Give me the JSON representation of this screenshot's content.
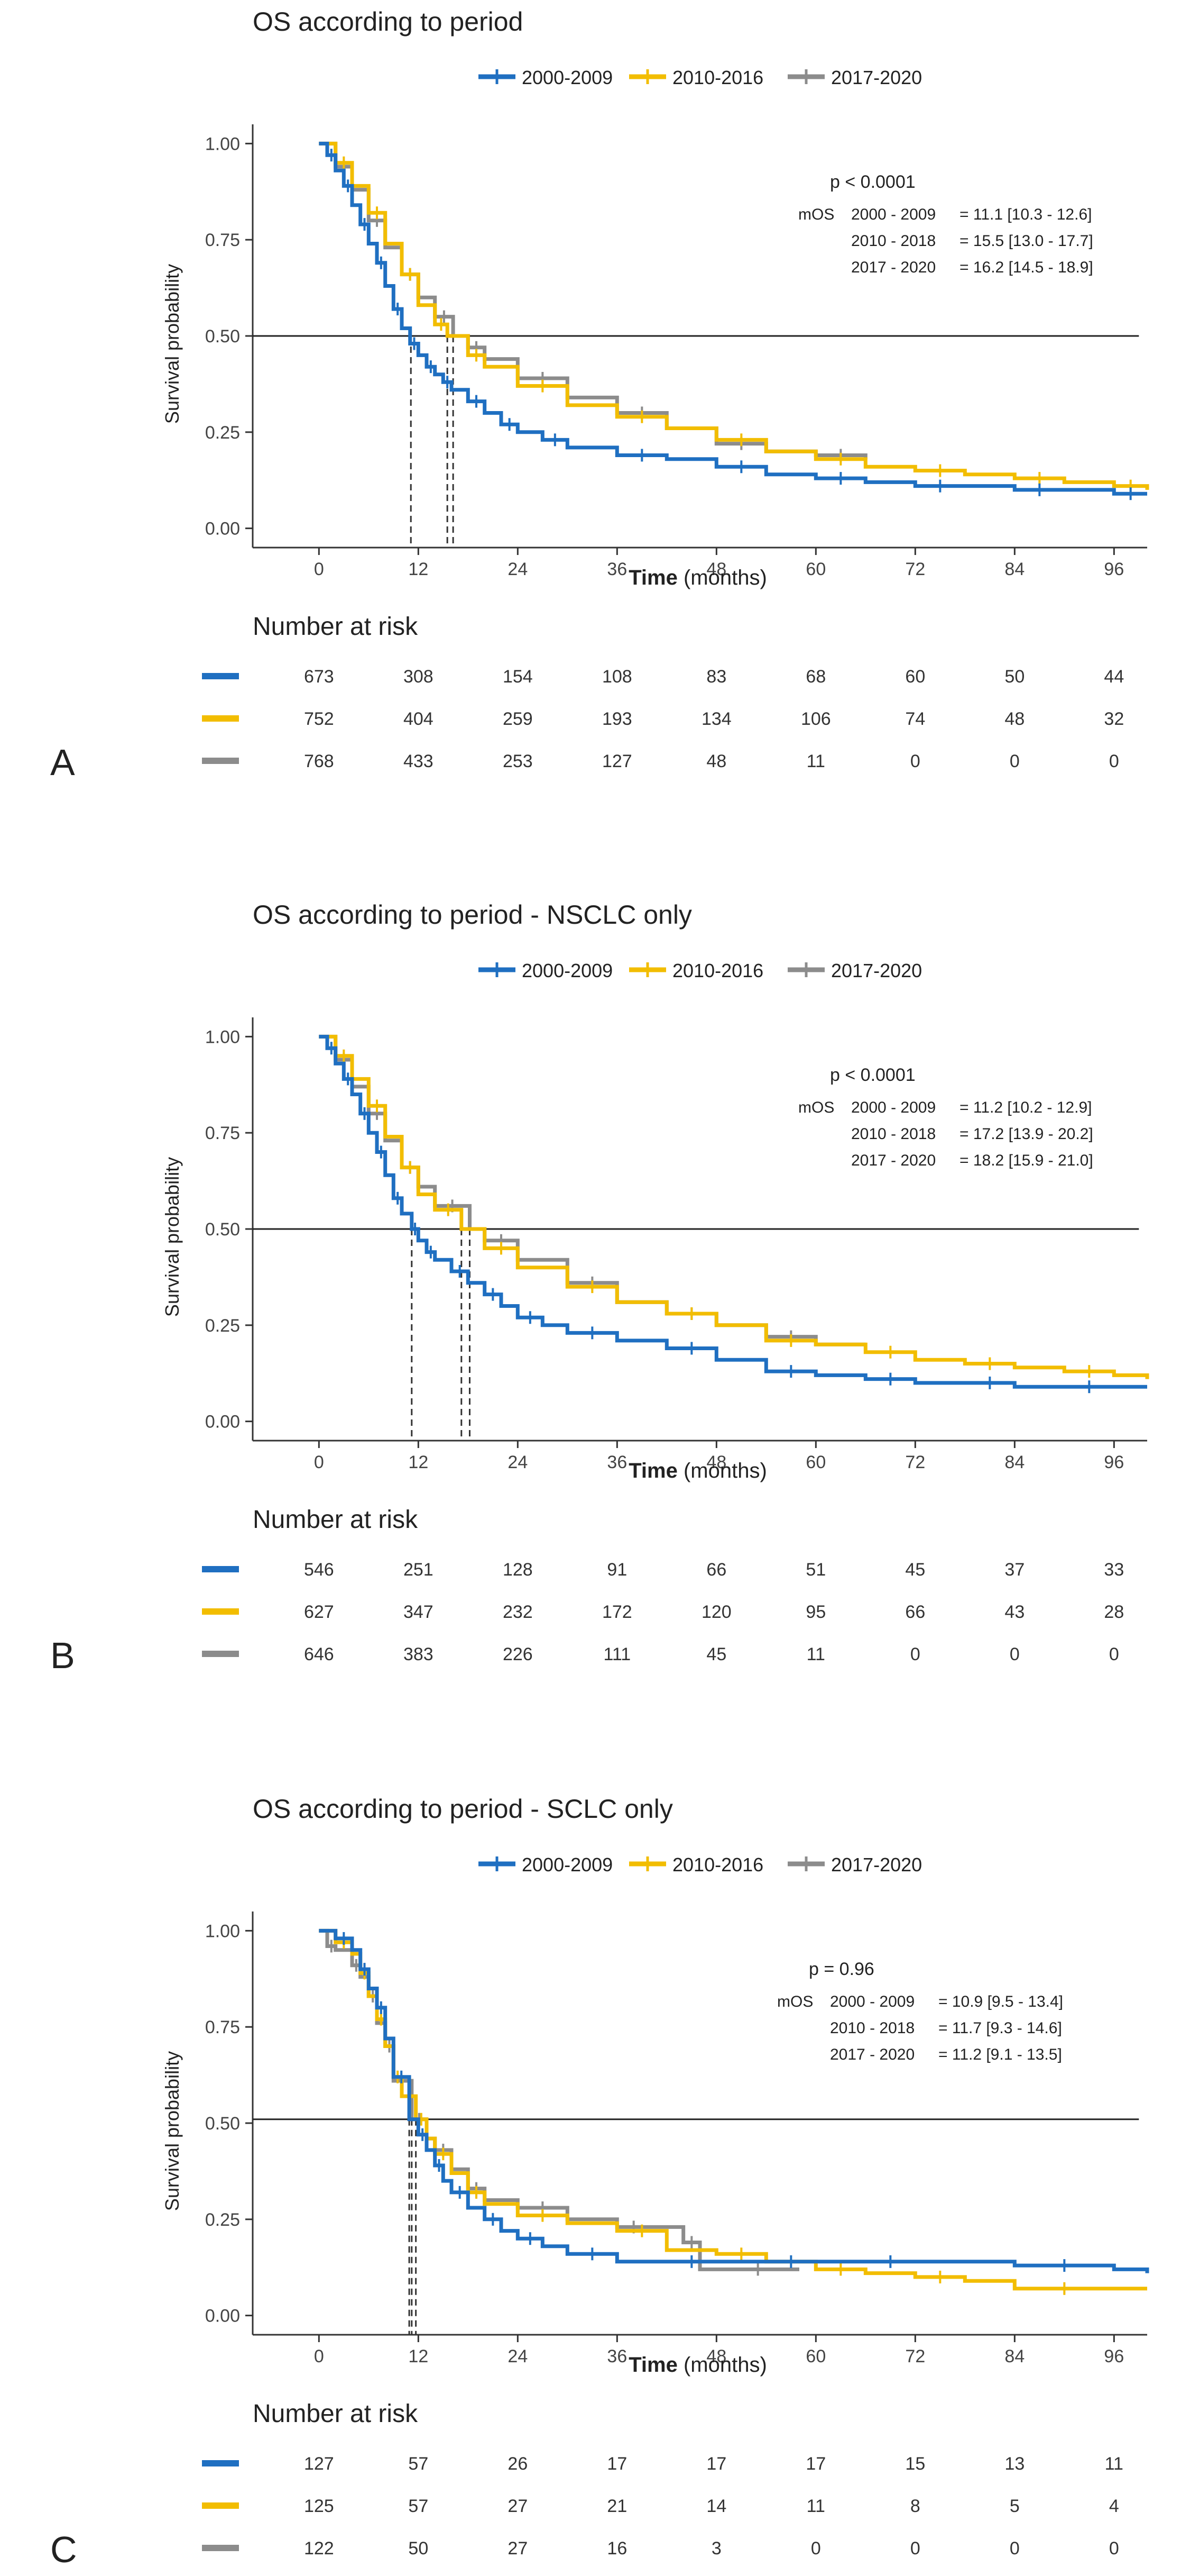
{
  "chart_data": [
    {
      "type": "line",
      "panel": "A",
      "title": "OS according to period",
      "xlabel": "Time",
      "xlabel_units": "(months)",
      "ylabel": "Survival probability",
      "xlim": [
        -8,
        100
      ],
      "ylim": [
        -0.05,
        1.05
      ],
      "x_ticks": [
        "0",
        "12",
        "24",
        "36",
        "48",
        "60",
        "72",
        "84",
        "96"
      ],
      "y_ticks": [
        "0.00",
        "0.25",
        "0.50",
        "0.75",
        "1.00"
      ],
      "legend": {
        "placement": "top"
      },
      "median_line": 0.5,
      "median_line_end": 99,
      "pvalue": "p < 0.0001",
      "mos_label": "mOS",
      "mos": [
        {
          "period": "2000 - 2009",
          "value": "= 11.1 [10.3 - 12.6]"
        },
        {
          "period": "2010 - 2018",
          "value": "= 15.5 [13.0 - 17.7]"
        },
        {
          "period": "2017 - 2020",
          "value": "= 16.2 [14.5 - 18.9]"
        }
      ],
      "risk_title": "Number at risk",
      "series": [
        {
          "name": "2000-2009",
          "color": "#1f6fc1",
          "median": 11.1,
          "x": [
            0,
            1,
            2,
            3,
            4,
            5,
            6,
            7,
            8,
            9,
            10,
            11,
            12,
            13,
            14,
            15,
            16,
            18,
            20,
            22,
            24,
            27,
            30,
            36,
            42,
            48,
            54,
            60,
            66,
            72,
            78,
            84,
            90,
            96,
            100
          ],
          "y": [
            1.0,
            0.97,
            0.93,
            0.89,
            0.84,
            0.79,
            0.74,
            0.69,
            0.63,
            0.57,
            0.52,
            0.48,
            0.45,
            0.42,
            0.4,
            0.38,
            0.36,
            0.33,
            0.3,
            0.27,
            0.25,
            0.23,
            0.21,
            0.19,
            0.18,
            0.16,
            0.14,
            0.13,
            0.12,
            0.11,
            0.11,
            0.1,
            0.1,
            0.09,
            0.09
          ],
          "at_risk": [
            "673",
            "308",
            "154",
            "108",
            "83",
            "68",
            "60",
            "50",
            "44"
          ]
        },
        {
          "name": "2010-2016",
          "color": "#f2bd00",
          "median": 15.5,
          "x": [
            0,
            2,
            4,
            6,
            8,
            10,
            12,
            14,
            15.5,
            18,
            20,
            24,
            30,
            36,
            42,
            48,
            54,
            60,
            66,
            72,
            78,
            84,
            90,
            96,
            100
          ],
          "y": [
            1.0,
            0.95,
            0.89,
            0.82,
            0.74,
            0.66,
            0.58,
            0.53,
            0.5,
            0.45,
            0.42,
            0.37,
            0.32,
            0.29,
            0.26,
            0.23,
            0.2,
            0.18,
            0.16,
            0.15,
            0.14,
            0.13,
            0.12,
            0.11,
            0.1
          ],
          "at_risk": [
            "752",
            "404",
            "259",
            "193",
            "134",
            "106",
            "74",
            "48",
            "32"
          ]
        },
        {
          "name": "2017-2020",
          "color": "#8c8c8c",
          "median": 16.2,
          "x": [
            0,
            2,
            4,
            6,
            8,
            10,
            12,
            14,
            16.2,
            18,
            20,
            24,
            30,
            36,
            42,
            48,
            54,
            60,
            66
          ],
          "y": [
            1.0,
            0.94,
            0.88,
            0.8,
            0.73,
            0.66,
            0.6,
            0.55,
            0.5,
            0.47,
            0.44,
            0.39,
            0.34,
            0.3,
            0.26,
            0.22,
            0.2,
            0.19,
            0.18
          ],
          "at_risk": [
            "768",
            "433",
            "253",
            "127",
            "48",
            "11",
            "0",
            "0",
            "0"
          ]
        }
      ]
    },
    {
      "type": "line",
      "panel": "B",
      "title": "OS according to period - NSCLC only",
      "xlabel": "Time",
      "xlabel_units": "(months)",
      "ylabel": "Survival probability",
      "xlim": [
        -8,
        100
      ],
      "ylim": [
        -0.05,
        1.05
      ],
      "x_ticks": [
        "0",
        "12",
        "24",
        "36",
        "48",
        "60",
        "72",
        "84",
        "96"
      ],
      "y_ticks": [
        "0.00",
        "0.25",
        "0.50",
        "0.75",
        "1.00"
      ],
      "legend": {
        "placement": "top"
      },
      "median_line": 0.5,
      "median_line_end": 99,
      "pvalue": "p < 0.0001",
      "mos_label": "mOS",
      "mos": [
        {
          "period": "2000 - 2009",
          "value": "= 11.2 [10.2 - 12.9]"
        },
        {
          "period": "2010 - 2018",
          "value": "= 17.2 [13.9 - 20.2]"
        },
        {
          "period": "2017 - 2020",
          "value": "= 18.2 [15.9 - 21.0]"
        }
      ],
      "risk_title": "Number at risk",
      "series": [
        {
          "name": "2000-2009",
          "color": "#1f6fc1",
          "median": 11.2,
          "x": [
            0,
            1,
            2,
            3,
            4,
            5,
            6,
            7,
            8,
            9,
            10,
            11.2,
            12,
            13,
            14,
            16,
            18,
            20,
            22,
            24,
            27,
            30,
            36,
            42,
            48,
            54,
            60,
            66,
            72,
            78,
            84,
            90,
            96,
            100
          ],
          "y": [
            1.0,
            0.97,
            0.93,
            0.89,
            0.85,
            0.8,
            0.75,
            0.7,
            0.64,
            0.58,
            0.54,
            0.5,
            0.47,
            0.44,
            0.42,
            0.39,
            0.36,
            0.33,
            0.3,
            0.27,
            0.25,
            0.23,
            0.21,
            0.19,
            0.16,
            0.13,
            0.12,
            0.11,
            0.1,
            0.1,
            0.09,
            0.09,
            0.09,
            0.09
          ],
          "at_risk": [
            "546",
            "251",
            "128",
            "91",
            "66",
            "51",
            "45",
            "37",
            "33"
          ]
        },
        {
          "name": "2010-2016",
          "color": "#f2bd00",
          "median": 17.2,
          "x": [
            0,
            2,
            4,
            6,
            8,
            10,
            12,
            14,
            17.2,
            20,
            24,
            30,
            36,
            42,
            48,
            54,
            60,
            66,
            72,
            78,
            84,
            90,
            96,
            100
          ],
          "y": [
            1.0,
            0.95,
            0.89,
            0.82,
            0.74,
            0.66,
            0.59,
            0.55,
            0.5,
            0.45,
            0.4,
            0.35,
            0.31,
            0.28,
            0.25,
            0.21,
            0.2,
            0.18,
            0.16,
            0.15,
            0.14,
            0.13,
            0.12,
            0.11
          ],
          "at_risk": [
            "627",
            "347",
            "232",
            "172",
            "120",
            "95",
            "66",
            "43",
            "28"
          ]
        },
        {
          "name": "2017-2020",
          "color": "#8c8c8c",
          "median": 18.2,
          "x": [
            0,
            2,
            4,
            6,
            8,
            10,
            12,
            14,
            18.2,
            20,
            24,
            30,
            36,
            42,
            48,
            54,
            60,
            66
          ],
          "y": [
            1.0,
            0.94,
            0.87,
            0.8,
            0.73,
            0.66,
            0.61,
            0.56,
            0.5,
            0.47,
            0.42,
            0.36,
            0.31,
            0.28,
            0.25,
            0.22,
            0.2,
            0.2
          ],
          "at_risk": [
            "646",
            "383",
            "226",
            "111",
            "45",
            "11",
            "0",
            "0",
            "0"
          ]
        }
      ]
    },
    {
      "type": "line",
      "panel": "C",
      "title": "OS according to period - SCLC only",
      "xlabel": "Time",
      "xlabel_units": "(months)",
      "ylabel": "Survival probability",
      "xlim": [
        -8,
        100
      ],
      "ylim": [
        -0.05,
        1.05
      ],
      "x_ticks": [
        "0",
        "12",
        "24",
        "36",
        "48",
        "60",
        "72",
        "84",
        "96"
      ],
      "y_ticks": [
        "0.00",
        "0.25",
        "0.50",
        "0.75",
        "1.00"
      ],
      "legend": {
        "placement": "top"
      },
      "median_line": 0.51,
      "median_line_end": 99,
      "pvalue": "p = 0.96",
      "mos_label": "mOS",
      "mos": [
        {
          "period": "2000 - 2009",
          "value": "= 10.9 [9.5 - 13.4]"
        },
        {
          "period": "2010 - 2018",
          "value": "= 11.7 [9.3 - 14.6]"
        },
        {
          "period": "2017 - 2020",
          "value": "= 11.2 [9.1 - 13.5]"
        }
      ],
      "risk_title": "Number at risk",
      "series": [
        {
          "name": "2000-2009",
          "color": "#1f6fc1",
          "median": 10.9,
          "x": [
            0,
            2,
            4,
            5,
            6,
            7,
            8,
            9,
            10.9,
            12,
            13,
            14,
            15,
            16,
            18,
            20,
            22,
            24,
            27,
            30,
            36,
            42,
            48,
            54,
            60,
            66,
            72,
            84,
            96,
            100
          ],
          "y": [
            1.0,
            0.98,
            0.95,
            0.9,
            0.85,
            0.8,
            0.72,
            0.62,
            0.51,
            0.47,
            0.43,
            0.39,
            0.35,
            0.32,
            0.28,
            0.25,
            0.22,
            0.2,
            0.18,
            0.16,
            0.14,
            0.14,
            0.14,
            0.14,
            0.14,
            0.14,
            0.14,
            0.13,
            0.12,
            0.11
          ],
          "at_risk": [
            "127",
            "57",
            "26",
            "17",
            "17",
            "17",
            "15",
            "13",
            "11"
          ]
        },
        {
          "name": "2010-2016",
          "color": "#f2bd00",
          "median": 11.7,
          "x": [
            0,
            2,
            4,
            5,
            6,
            7,
            8,
            9,
            10,
            11.7,
            13,
            14,
            16,
            18,
            20,
            24,
            30,
            36,
            42,
            48,
            54,
            60,
            66,
            72,
            78,
            84,
            96,
            100
          ],
          "y": [
            1.0,
            0.97,
            0.94,
            0.89,
            0.83,
            0.77,
            0.7,
            0.62,
            0.57,
            0.51,
            0.46,
            0.42,
            0.37,
            0.32,
            0.29,
            0.26,
            0.24,
            0.22,
            0.17,
            0.16,
            0.14,
            0.12,
            0.11,
            0.1,
            0.09,
            0.07,
            0.07,
            0.07
          ],
          "at_risk": [
            "125",
            "57",
            "27",
            "21",
            "14",
            "11",
            "8",
            "5",
            "4"
          ]
        },
        {
          "name": "2017-2020",
          "color": "#8c8c8c",
          "median": 11.2,
          "x": [
            0,
            1,
            2,
            4,
            5,
            6,
            7,
            8,
            9,
            11.2,
            13,
            14,
            16,
            18,
            20,
            24,
            30,
            36,
            40,
            44,
            46,
            50,
            56,
            58
          ],
          "y": [
            1.0,
            0.96,
            0.95,
            0.91,
            0.88,
            0.83,
            0.76,
            0.7,
            0.61,
            0.51,
            0.46,
            0.43,
            0.38,
            0.33,
            0.3,
            0.28,
            0.25,
            0.23,
            0.23,
            0.19,
            0.12,
            0.12,
            0.12,
            0.12
          ],
          "at_risk": [
            "122",
            "50",
            "27",
            "16",
            "3",
            "0",
            "0",
            "0",
            "0"
          ]
        }
      ]
    }
  ]
}
